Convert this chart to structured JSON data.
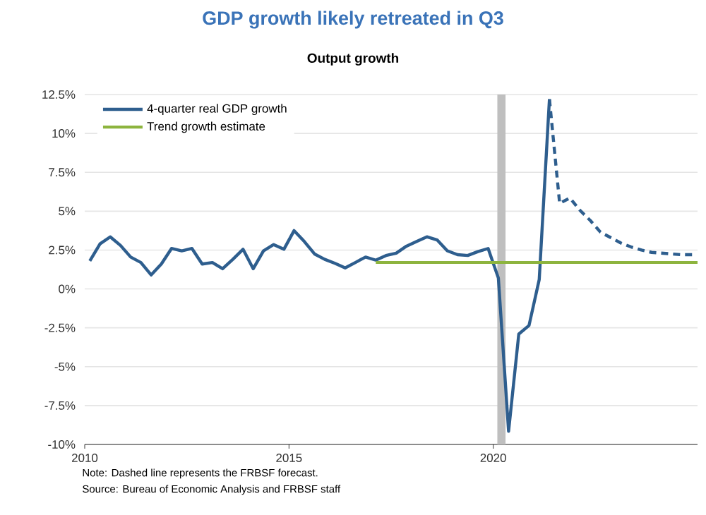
{
  "chart_data": {
    "type": "line",
    "title": "GDP growth likely retreated in Q3",
    "subtitle": "Output growth",
    "xlim": [
      2010,
      2025
    ],
    "xticks": [
      2010,
      2015,
      2020
    ],
    "ylim": [
      -10,
      12.5
    ],
    "yticks": [
      {
        "value": -10,
        "label": "-10%"
      },
      {
        "value": -7.5,
        "label": "-7.5%"
      },
      {
        "value": -5,
        "label": "-5%"
      },
      {
        "value": -2.5,
        "label": "-2.5%"
      },
      {
        "value": 0,
        "label": "0%"
      },
      {
        "value": 2.5,
        "label": "2.5%"
      },
      {
        "value": 5,
        "label": "5%"
      },
      {
        "value": 7.5,
        "label": "7.5%"
      },
      {
        "value": 10,
        "label": "10%"
      },
      {
        "value": 12.5,
        "label": "12.5%"
      }
    ],
    "grid": "y",
    "legend": "top left",
    "series": [
      {
        "name": "4-quarter real GDP growth",
        "color": "#2e5e8e",
        "line_style": "solid",
        "x": [
          2010.125,
          2010.375,
          2010.625,
          2010.875,
          2011.125,
          2011.375,
          2011.625,
          2011.875,
          2012.125,
          2012.375,
          2012.625,
          2012.875,
          2013.125,
          2013.375,
          2013.625,
          2013.875,
          2014.125,
          2014.375,
          2014.625,
          2014.875,
          2015.125,
          2015.375,
          2015.625,
          2015.875,
          2016.125,
          2016.375,
          2016.625,
          2016.875,
          2017.125,
          2017.375,
          2017.625,
          2017.875,
          2018.125,
          2018.375,
          2018.625,
          2018.875,
          2019.125,
          2019.375,
          2019.625,
          2019.875,
          2020.125,
          2020.375,
          2020.625,
          2020.875,
          2021.125,
          2021.375
        ],
        "values": [
          1.8,
          2.9,
          3.35,
          2.8,
          2.05,
          1.7,
          0.9,
          1.6,
          2.6,
          2.45,
          2.6,
          1.6,
          1.7,
          1.3,
          1.9,
          2.55,
          1.3,
          2.45,
          2.85,
          2.55,
          3.75,
          3.05,
          2.25,
          1.9,
          1.65,
          1.35,
          1.7,
          2.05,
          1.85,
          2.15,
          2.3,
          2.75,
          3.05,
          3.35,
          3.15,
          2.45,
          2.2,
          2.15,
          2.4,
          2.6,
          0.7,
          -9.15,
          -2.9,
          -2.35,
          0.6,
          12.2
        ]
      },
      {
        "color": "#2e5e8e",
        "line_style": "dashed",
        "x": [
          2021.375,
          2021.625,
          2021.875,
          2022.125,
          2022.375,
          2022.625,
          2022.875,
          2023.125,
          2023.375,
          2023.625,
          2023.875,
          2024.125,
          2024.375,
          2024.625,
          2024.875
        ],
        "values": [
          12.2,
          5.5,
          5.85,
          5.05,
          4.4,
          3.65,
          3.3,
          2.95,
          2.7,
          2.5,
          2.35,
          2.3,
          2.25,
          2.2,
          2.2
        ]
      },
      {
        "name": "Trend growth estimate",
        "color": "#8db43e",
        "line_style": "solid",
        "x": [
          2017.125,
          2025
        ],
        "values": [
          1.7,
          1.7
        ]
      }
    ],
    "bands": [
      {
        "axis": "x",
        "from": 2020.1,
        "to": 2020.3,
        "color": "#bfbfbf"
      }
    ],
    "annotations": [
      "Note: Dashed line represents the FRBSF forecast.",
      "Source: Bureau of Economic Analysis and FRBSF staff"
    ]
  }
}
